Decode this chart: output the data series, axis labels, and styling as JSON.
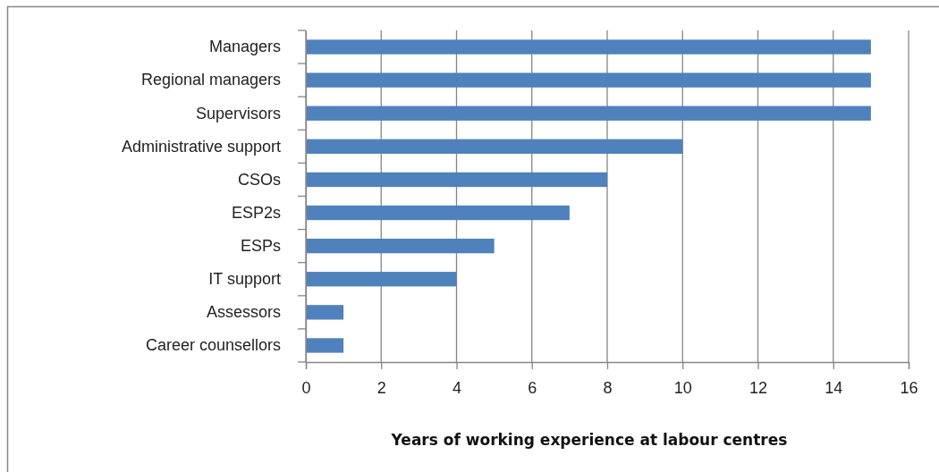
{
  "chart_data": {
    "type": "bar",
    "orientation": "horizontal",
    "categories": [
      "Managers",
      "Regional managers",
      "Supervisors",
      "Administrative support",
      "CSOs",
      "ESP2s",
      "ESPs",
      "IT support",
      "Assessors",
      "Career counsellors"
    ],
    "values": [
      15,
      15,
      15,
      10,
      8,
      7,
      5,
      4,
      1,
      1
    ],
    "color": "#4f81bd",
    "xlabel": "Years of working experience at labour centres",
    "xlim": [
      0,
      16
    ],
    "xticks": [
      0,
      2,
      4,
      6,
      8,
      10,
      12,
      14,
      16
    ],
    "grid": "x"
  }
}
